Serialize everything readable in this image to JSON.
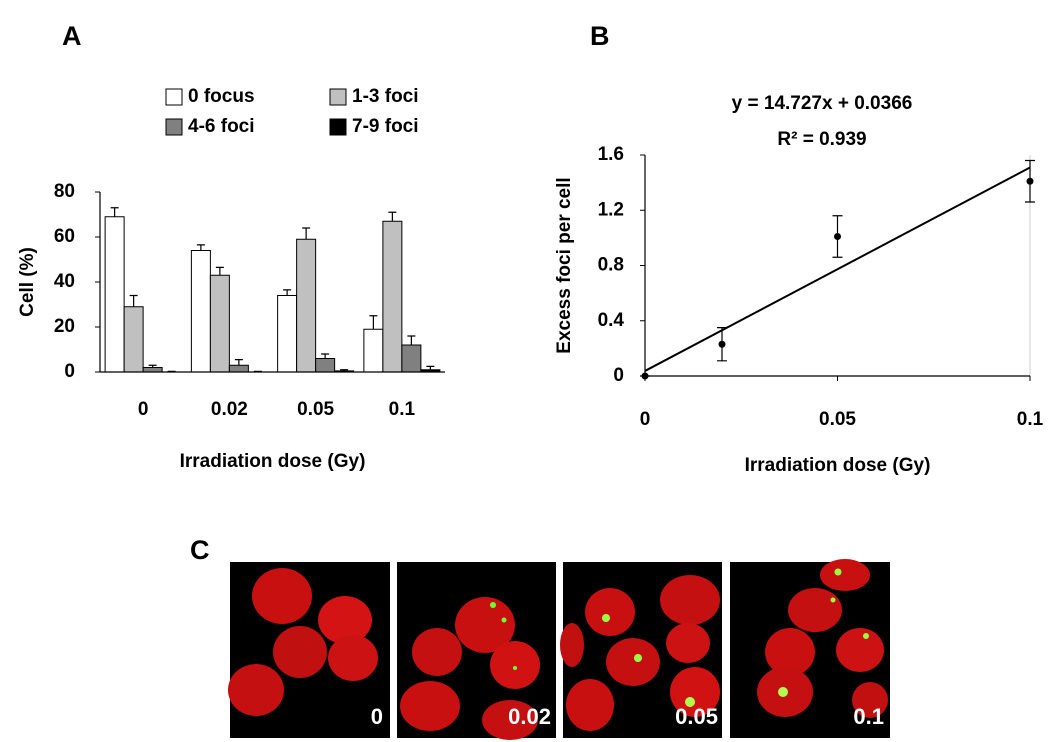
{
  "panels": [
    "A",
    "B",
    "C"
  ],
  "micrographs": [
    "0",
    "0.02",
    "0.05",
    "0.1"
  ],
  "chart_data": [
    {
      "type": "bar",
      "categories": [
        "0",
        "0.02",
        "0.05",
        "0.1"
      ],
      "y_label": "Cell (%)",
      "x_label": "Irradiation dose (Gy)",
      "ylim": [
        0,
        80
      ],
      "yticks": [
        0,
        20,
        40,
        60,
        80
      ],
      "series": [
        {
          "name": "0 focus",
          "color": "#ffffff",
          "values": [
            69,
            54,
            34,
            19
          ],
          "errors": [
            4,
            2.5,
            2.5,
            6
          ]
        },
        {
          "name": "1-3 foci",
          "color": "#c0c0c0",
          "values": [
            29,
            43,
            59,
            67
          ],
          "errors": [
            5,
            3.5,
            5,
            4
          ]
        },
        {
          "name": "4-6 foci",
          "color": "#808080",
          "values": [
            2,
            3,
            6,
            12
          ],
          "errors": [
            1,
            2.5,
            2,
            4
          ]
        },
        {
          "name": "7-9 foci",
          "color": "#000000",
          "values": [
            0,
            0,
            0.5,
            1
          ],
          "errors": [
            0.3,
            0.3,
            0.5,
            1.5
          ]
        }
      ]
    },
    {
      "type": "scatter",
      "x": [
        0,
        0.02,
        0.05,
        0.1
      ],
      "values": [
        0,
        0.23,
        1.01,
        1.41
      ],
      "errors": [
        0,
        0.12,
        0.15,
        0.15
      ],
      "color": "#000000",
      "y_label": "Excess foci per cell",
      "x_label": "Irradiation dose (Gy)",
      "xlim": [
        0,
        0.1
      ],
      "xticks": [
        0,
        0.05,
        0.1
      ],
      "ylim": [
        0,
        1.6
      ],
      "yticks": [
        0,
        0.4,
        0.8,
        1.2,
        1.6
      ],
      "trendline": {
        "slope": 14.727,
        "intercept": 0.0366,
        "label": "y = 14.727x + 0.0366",
        "r2_label": "R² = 0.939"
      }
    }
  ]
}
